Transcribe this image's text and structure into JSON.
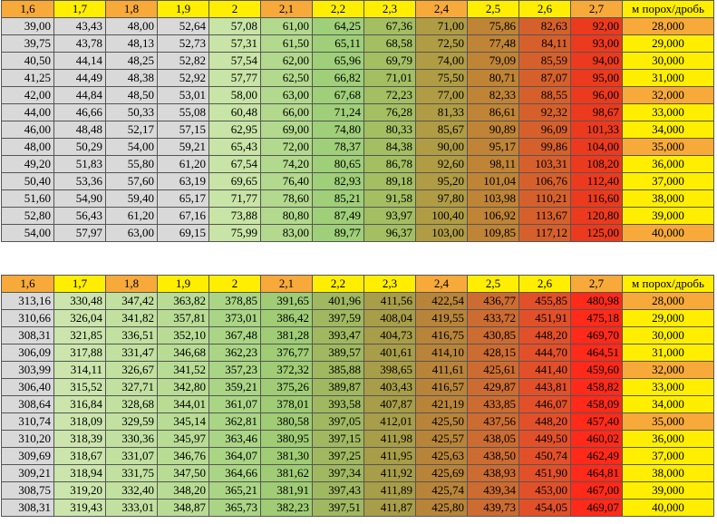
{
  "tables": [
    {
      "header": [
        "1,6",
        "1,7",
        "1,8",
        "1,9",
        "2",
        "2,1",
        "2,2",
        "2,3",
        "2,4",
        "2,5",
        "2,6",
        "2,7",
        "м порох/дробь"
      ],
      "rows": [
        [
          "39,00",
          "43,43",
          "48,00",
          "52,64",
          "57,08",
          "61,00",
          "64,25",
          "67,36",
          "71,00",
          "75,86",
          "82,63",
          "92,00",
          "28,000"
        ],
        [
          "39,75",
          "43,78",
          "48,13",
          "52,73",
          "57,31",
          "61,50",
          "65,11",
          "68,58",
          "72,50",
          "77,48",
          "84,11",
          "93,00",
          "29,000"
        ],
        [
          "40,50",
          "44,14",
          "48,25",
          "52,82",
          "57,54",
          "62,00",
          "65,96",
          "69,79",
          "74,00",
          "79,09",
          "85,59",
          "94,00",
          "30,000"
        ],
        [
          "41,25",
          "44,49",
          "48,38",
          "52,92",
          "57,77",
          "62,50",
          "66,82",
          "71,01",
          "75,50",
          "80,71",
          "87,07",
          "95,00",
          "31,000"
        ],
        [
          "42,00",
          "44,84",
          "48,50",
          "53,01",
          "58,00",
          "63,00",
          "67,68",
          "72,23",
          "77,00",
          "82,33",
          "88,55",
          "96,00",
          "32,000"
        ],
        [
          "44,00",
          "46,66",
          "50,33",
          "55,08",
          "60,48",
          "66,00",
          "71,24",
          "76,28",
          "81,33",
          "86,61",
          "92,32",
          "98,67",
          "33,000"
        ],
        [
          "46,00",
          "48,48",
          "52,17",
          "57,15",
          "62,95",
          "69,00",
          "74,80",
          "80,33",
          "85,67",
          "90,89",
          "96,09",
          "101,33",
          "34,000"
        ],
        [
          "48,00",
          "50,29",
          "54,00",
          "59,21",
          "65,43",
          "72,00",
          "78,37",
          "84,38",
          "90,00",
          "95,17",
          "99,86",
          "104,00",
          "35,000"
        ],
        [
          "49,20",
          "51,83",
          "55,80",
          "61,20",
          "67,54",
          "74,20",
          "80,65",
          "86,78",
          "92,60",
          "98,11",
          "103,31",
          "108,20",
          "36,000"
        ],
        [
          "50,40",
          "53,36",
          "57,60",
          "63,19",
          "69,65",
          "76,40",
          "82,93",
          "89,18",
          "95,20",
          "101,04",
          "106,76",
          "112,40",
          "37,000"
        ],
        [
          "51,60",
          "54,90",
          "59,40",
          "65,17",
          "71,77",
          "78,60",
          "85,21",
          "91,58",
          "97,80",
          "103,98",
          "110,21",
          "116,60",
          "38,000"
        ],
        [
          "52,80",
          "56,43",
          "61,20",
          "67,16",
          "73,88",
          "80,80",
          "87,49",
          "93,97",
          "100,40",
          "106,92",
          "113,67",
          "120,80",
          "39,000"
        ],
        [
          "54,00",
          "57,97",
          "63,00",
          "69,15",
          "75,99",
          "83,00",
          "89,77",
          "96,37",
          "103,00",
          "109,85",
          "117,12",
          "125,00",
          "40,000"
        ]
      ]
    },
    {
      "header": [
        "1,6",
        "1,7",
        "1,8",
        "1,9",
        "2",
        "2,1",
        "2,2",
        "2,3",
        "2,4",
        "2,5",
        "2,6",
        "2,7",
        "м порох/дробь"
      ],
      "rows": [
        [
          "313,16",
          "330,48",
          "347,42",
          "363,82",
          "378,85",
          "391,65",
          "401,96",
          "411,56",
          "422,54",
          "436,77",
          "455,85",
          "480,98",
          "28,000"
        ],
        [
          "310,66",
          "326,04",
          "341,82",
          "357,81",
          "373,01",
          "386,42",
          "397,59",
          "408,04",
          "419,55",
          "433,72",
          "451,91",
          "475,18",
          "29,000"
        ],
        [
          "308,31",
          "321,85",
          "336,51",
          "352,10",
          "367,48",
          "381,28",
          "393,47",
          "404,73",
          "416,75",
          "430,85",
          "448,20",
          "469,70",
          "30,000"
        ],
        [
          "306,09",
          "317,88",
          "331,47",
          "346,68",
          "362,23",
          "376,77",
          "389,57",
          "401,61",
          "414,10",
          "428,15",
          "444,70",
          "464,51",
          "31,000"
        ],
        [
          "303,99",
          "314,11",
          "326,67",
          "341,52",
          "357,23",
          "372,32",
          "385,88",
          "398,65",
          "411,61",
          "425,61",
          "441,40",
          "459,60",
          "32,000"
        ],
        [
          "306,40",
          "315,52",
          "327,71",
          "342,80",
          "359,21",
          "375,26",
          "389,87",
          "403,43",
          "416,57",
          "429,87",
          "443,81",
          "458,82",
          "33,000"
        ],
        [
          "308,64",
          "316,84",
          "328,68",
          "344,01",
          "361,07",
          "378,01",
          "393,58",
          "407,87",
          "421,19",
          "433,85",
          "446,07",
          "458,09",
          "34,000"
        ],
        [
          "310,74",
          "318,09",
          "329,59",
          "345,14",
          "362,81",
          "380,58",
          "397,05",
          "412,01",
          "425,50",
          "437,56",
          "448,20",
          "457,40",
          "35,000"
        ],
        [
          "310,20",
          "318,39",
          "330,36",
          "345,97",
          "363,46",
          "380,95",
          "397,15",
          "411,98",
          "425,57",
          "438,05",
          "449,50",
          "460,02",
          "36,000"
        ],
        [
          "309,69",
          "318,67",
          "331,07",
          "346,76",
          "364,07",
          "381,30",
          "397,25",
          "411,95",
          "425,63",
          "438,50",
          "450,74",
          "462,49",
          "37,000"
        ],
        [
          "309,21",
          "318,94",
          "331,75",
          "347,50",
          "364,66",
          "381,62",
          "397,34",
          "411,92",
          "425,69",
          "438,93",
          "451,90",
          "464,81",
          "38,000"
        ],
        [
          "308,75",
          "319,20",
          "332,40",
          "348,20",
          "365,21",
          "381,91",
          "397,43",
          "411,89",
          "425,74",
          "439,34",
          "453,00",
          "467,00",
          "39,000"
        ],
        [
          "308,31",
          "319,43",
          "333,01",
          "348,87",
          "365,73",
          "382,23",
          "397,51",
          "411,87",
          "425,80",
          "439,73",
          "454,05",
          "469,07",
          "40,000"
        ]
      ]
    }
  ]
}
